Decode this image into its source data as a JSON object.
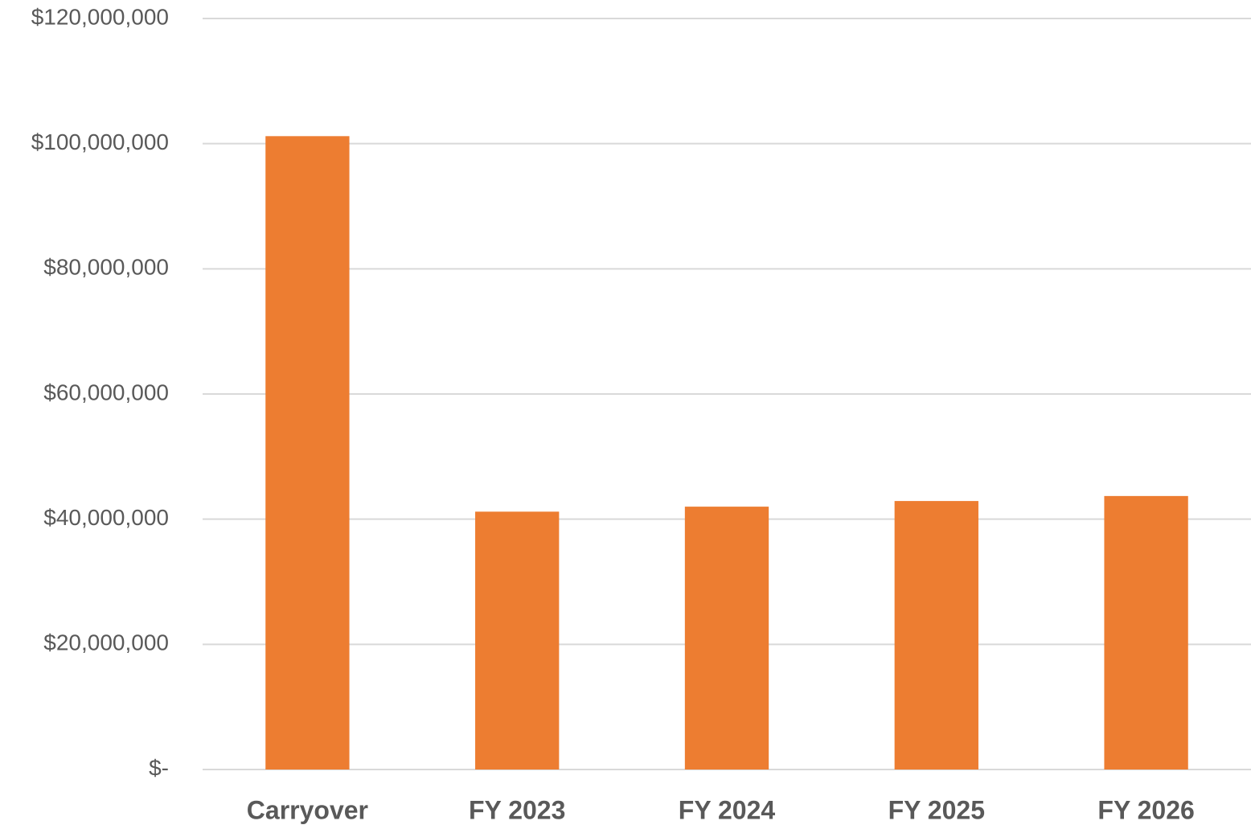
{
  "chart_data": {
    "type": "bar",
    "categories": [
      "Carryover",
      "FY 2023",
      "FY 2024",
      "FY 2025",
      "FY 2026"
    ],
    "values": [
      101200000,
      41200000,
      42000000,
      42900000,
      43700000
    ],
    "color": "#ed7d31",
    "ylim": [
      0,
      120000000
    ],
    "yticks": [
      {
        "value": 0,
        "label": "$-"
      },
      {
        "value": 20000000,
        "label": "$20,000,000"
      },
      {
        "value": 40000000,
        "label": "$40,000,000"
      },
      {
        "value": 60000000,
        "label": "$60,000,000"
      },
      {
        "value": 80000000,
        "label": "$80,000,000"
      },
      {
        "value": 100000000,
        "label": "$100,000,000"
      },
      {
        "value": 120000000,
        "label": "$120,000,000"
      }
    ],
    "grid": true
  }
}
